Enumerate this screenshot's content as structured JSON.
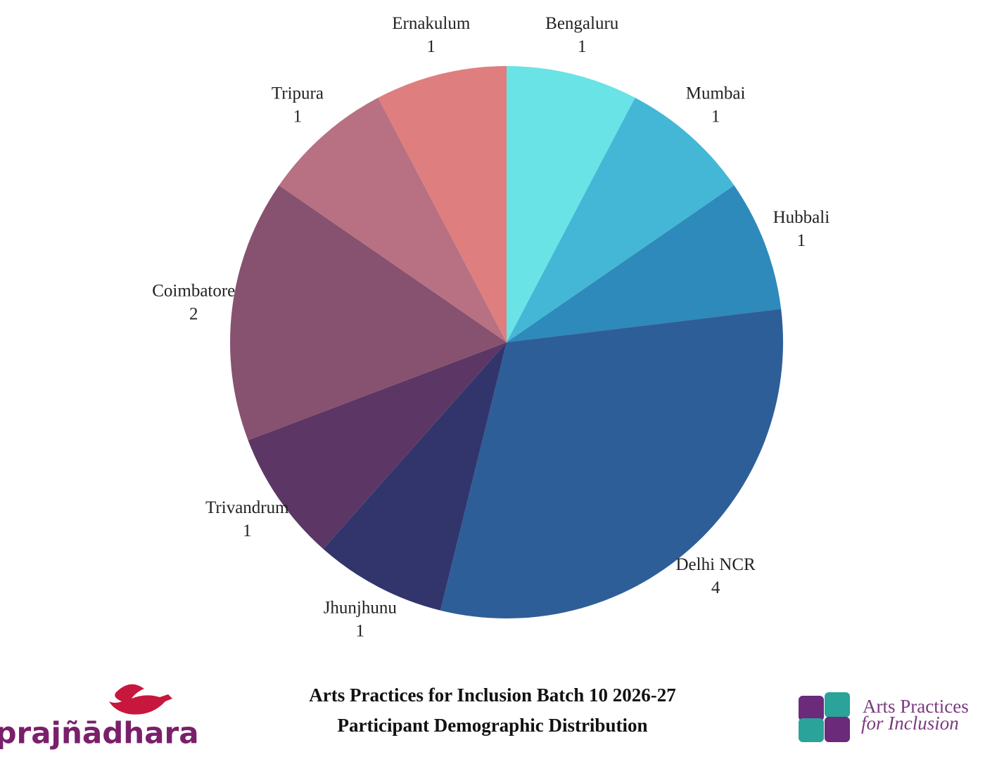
{
  "chart_data": {
    "type": "pie",
    "title": "Arts Practices for Inclusion Batch 10 2026-27",
    "subtitle": "Participant Demographic Distribution",
    "categories": [
      "Bengaluru",
      "Mumbai",
      "Hubbali",
      "Delhi NCR",
      "Jhunjhunu",
      "Trivandrum",
      "Coimbatore",
      "Tripura",
      "Ernakulum"
    ],
    "values": [
      1,
      1,
      1,
      4,
      1,
      1,
      2,
      1,
      1
    ],
    "colors": [
      "#6ae3e6",
      "#44b7d6",
      "#2d8aba",
      "#2e5e98",
      "#31356c",
      "#5c3765",
      "#87526f",
      "#b87182",
      "#df7e7e"
    ]
  },
  "logos": {
    "left": "prajñādhara",
    "right_line1": "Arts Practices",
    "right_line2": "for Inclusion"
  }
}
